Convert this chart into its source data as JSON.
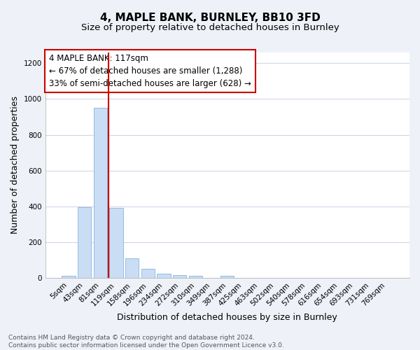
{
  "title": "4, MAPLE BANK, BURNLEY, BB10 3FD",
  "subtitle": "Size of property relative to detached houses in Burnley",
  "xlabel": "Distribution of detached houses by size in Burnley",
  "ylabel": "Number of detached properties",
  "categories": [
    "5sqm",
    "43sqm",
    "81sqm",
    "119sqm",
    "158sqm",
    "196sqm",
    "234sqm",
    "272sqm",
    "310sqm",
    "349sqm",
    "387sqm",
    "425sqm",
    "463sqm",
    "502sqm",
    "540sqm",
    "578sqm",
    "616sqm",
    "654sqm",
    "693sqm",
    "731sqm",
    "769sqm"
  ],
  "values": [
    13,
    395,
    950,
    390,
    108,
    52,
    25,
    15,
    13,
    0,
    12,
    0,
    0,
    0,
    0,
    0,
    0,
    0,
    0,
    0,
    0
  ],
  "bar_color": "#c9ddf5",
  "bar_edge_color": "#8ab4d8",
  "vline_x": 2.5,
  "vline_color": "#cc0000",
  "annotation_text_line1": "4 MAPLE BANK: 117sqm",
  "annotation_text_line2": "← 67% of detached houses are smaller (1,288)",
  "annotation_text_line3": "33% of semi-detached houses are larger (628) →",
  "annotation_box_color": "#ffffff",
  "annotation_box_edge": "#cc0000",
  "ylim_max": 1260,
  "yticks": [
    0,
    200,
    400,
    600,
    800,
    1000,
    1200
  ],
  "footnote": "Contains HM Land Registry data © Crown copyright and database right 2024.\nContains public sector information licensed under the Open Government Licence v3.0.",
  "fig_bg_color": "#eef2f8",
  "axes_bg_color": "#ffffff",
  "grid_color": "#d0d8e8",
  "title_fontsize": 11,
  "subtitle_fontsize": 9.5,
  "axis_label_fontsize": 9,
  "tick_fontsize": 7.5,
  "annotation_fontsize": 8.5,
  "footnote_fontsize": 6.5
}
